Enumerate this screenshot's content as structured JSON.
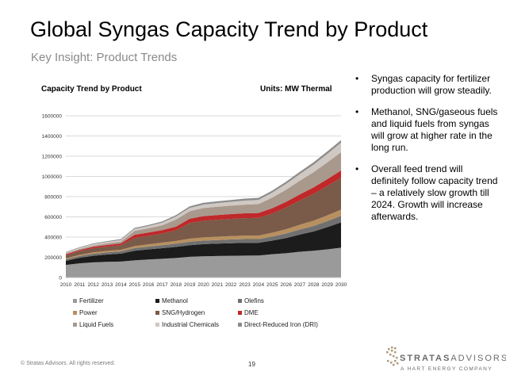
{
  "slide": {
    "title": "Global Syngas Capacity Trend by Product",
    "subtitle": "Key Insight: Product Trends",
    "footer": "© Stratas Advisors. All rights reserved.",
    "page_number": "19",
    "logo": {
      "name_part1": "STRATAS",
      "name_part2": "ADVISORS",
      "tagline": "A HART ENERGY COMPANY"
    }
  },
  "bullets": [
    "Syngas capacity for fertilizer production will grow steadily.",
    "Methanol, SNG/gaseous fuels and liquid fuels from syngas will grow at higher rate in the long run.",
    "Overall feed trend will definitely follow capacity trend – a relatively slow growth till 2024. Growth will increase afterwards."
  ],
  "bullet_symbol": "•",
  "chart_data": {
    "type": "area",
    "stacked": true,
    "title": "Capacity Trend by Product",
    "units_label": "Units: MW Thermal",
    "x": [
      "2010",
      "2011",
      "2012",
      "2013",
      "2014",
      "2015",
      "2016",
      "2017",
      "2018",
      "2019",
      "2020",
      "2021",
      "2022",
      "2023",
      "2024",
      "2025",
      "2026",
      "2027",
      "2028",
      "2029",
      "2030"
    ],
    "ylim": [
      0,
      1600000
    ],
    "yticks": [
      "0",
      "200000",
      "400000",
      "600000",
      "800000",
      "1000000",
      "1200000",
      "1400000",
      "1600000"
    ],
    "grid": true,
    "legend_position": "bottom",
    "series": [
      {
        "name": "Fertilizer",
        "color": "#9a9a9a",
        "values": [
          125000,
          140000,
          150000,
          155000,
          158000,
          170000,
          178000,
          185000,
          193000,
          205000,
          210000,
          213000,
          215000,
          217000,
          218000,
          230000,
          240000,
          255000,
          265000,
          278000,
          295000
        ]
      },
      {
        "name": "Methanol",
        "color": "#1c1c1c",
        "values": [
          40000,
          55000,
          65000,
          72000,
          78000,
          95000,
          100000,
          105000,
          110000,
          115000,
          120000,
          122000,
          124000,
          126000,
          125000,
          135000,
          150000,
          170000,
          190000,
          220000,
          250000
        ]
      },
      {
        "name": "Olefins",
        "color": "#707070",
        "values": [
          15000,
          18000,
          20000,
          22000,
          23000,
          26000,
          28000,
          30000,
          32000,
          34000,
          35000,
          36000,
          37000,
          37000,
          37000,
          40000,
          45000,
          50000,
          55000,
          60000,
          65000
        ]
      },
      {
        "name": "Power",
        "color": "#b8905f",
        "values": [
          10000,
          12000,
          14000,
          15000,
          16000,
          20000,
          22000,
          25000,
          27000,
          30000,
          32000,
          33000,
          34000,
          35000,
          35000,
          38000,
          42000,
          47000,
          52000,
          57000,
          62000
        ]
      },
      {
        "name": "SNG/Hydrogen",
        "color": "#7a5a48",
        "values": [
          30000,
          35000,
          40000,
          42000,
          45000,
          80000,
          85000,
          90000,
          105000,
          155000,
          165000,
          168000,
          170000,
          172000,
          175000,
          190000,
          215000,
          240000,
          265000,
          290000,
          315000
        ]
      },
      {
        "name": "DME",
        "color": "#c0282a",
        "values": [
          10000,
          12000,
          15000,
          16000,
          17000,
          32000,
          32000,
          34000,
          36000,
          42000,
          45000,
          46000,
          47000,
          48000,
          48000,
          52000,
          56000,
          60000,
          64000,
          68000,
          72000
        ]
      },
      {
        "name": "Liquid Fuels",
        "color": "#a9988c",
        "values": [
          8000,
          10000,
          12000,
          15000,
          18000,
          38000,
          42000,
          48000,
          70000,
          75000,
          80000,
          82000,
          84000,
          86000,
          88000,
          105000,
          120000,
          135000,
          150000,
          165000,
          180000
        ]
      },
      {
        "name": "Industrial Chemicals",
        "color": "#cfc8c3",
        "values": [
          10000,
          12000,
          14000,
          15000,
          16000,
          20000,
          22000,
          26000,
          30000,
          32000,
          35000,
          36000,
          38000,
          40000,
          42000,
          50000,
          58000,
          66000,
          75000,
          85000,
          95000
        ]
      },
      {
        "name": "Direct-Reduced Iron (DRI)",
        "color": "#8c8c8c",
        "values": [
          5000,
          6000,
          7000,
          8000,
          9000,
          10000,
          11000,
          12000,
          14000,
          16000,
          17000,
          18000,
          18000,
          19000,
          19000,
          20000,
          21000,
          22000,
          23000,
          24000,
          25000
        ]
      }
    ]
  }
}
